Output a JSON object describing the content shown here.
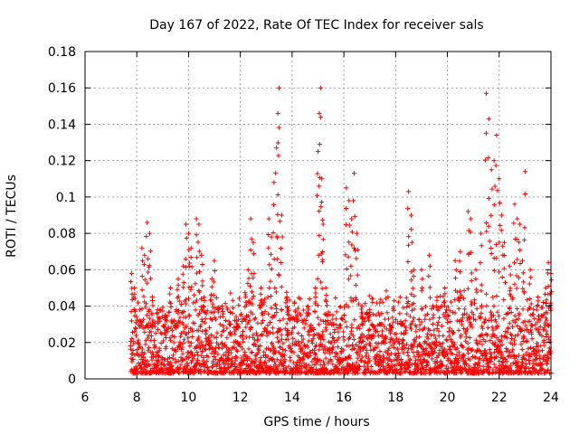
{
  "chart_data": {
    "type": "scatter",
    "title": "Day 167 of 2022, Rate Of TEC Index for receiver sals",
    "xlabel": "GPS time / hours",
    "ylabel": "ROTI / TECUs",
    "xlim": [
      6,
      24
    ],
    "ylim": [
      0,
      0.18
    ],
    "x_ticks": [
      6,
      8,
      10,
      12,
      14,
      16,
      18,
      20,
      22,
      24
    ],
    "x_tick_labels": [
      "6",
      "8",
      "10",
      "12",
      "14",
      "16",
      "18",
      "20",
      "22",
      "24"
    ],
    "y_ticks": [
      0,
      0.02,
      0.04,
      0.06,
      0.08,
      0.1,
      0.12,
      0.14,
      0.16,
      0.18
    ],
    "y_tick_labels": [
      "0",
      "0.02",
      "0.04",
      "0.06",
      "0.08",
      "0.1",
      "0.12",
      "0.14",
      "0.16",
      "0.18"
    ],
    "grid": true,
    "marker": "plus",
    "marker_color": "#ff0000",
    "series": [
      {
        "name": "ROTI",
        "points": [
          [
            7.8,
            0.058
          ],
          [
            7.9,
            0.05
          ],
          [
            8.2,
            0.072
          ],
          [
            8.3,
            0.068
          ],
          [
            8.4,
            0.086
          ],
          [
            8.5,
            0.08
          ],
          [
            8.6,
            0.045
          ],
          [
            8.8,
            0.038
          ],
          [
            9.1,
            0.035
          ],
          [
            9.3,
            0.05
          ],
          [
            9.6,
            0.055
          ],
          [
            9.8,
            0.062
          ],
          [
            9.9,
            0.085
          ],
          [
            10.0,
            0.08
          ],
          [
            10.1,
            0.072
          ],
          [
            10.3,
            0.088
          ],
          [
            10.4,
            0.085
          ],
          [
            10.5,
            0.068
          ],
          [
            10.6,
            0.045
          ],
          [
            10.9,
            0.055
          ],
          [
            11.0,
            0.065
          ],
          [
            11.3,
            0.04
          ],
          [
            11.6,
            0.03
          ],
          [
            11.9,
            0.028
          ],
          [
            12.2,
            0.045
          ],
          [
            12.3,
            0.06
          ],
          [
            12.4,
            0.088
          ],
          [
            12.5,
            0.075
          ],
          [
            12.8,
            0.05
          ],
          [
            13.1,
            0.088
          ],
          [
            13.2,
            0.078
          ],
          [
            13.3,
            0.108
          ],
          [
            13.4,
            0.127
          ],
          [
            13.45,
            0.146
          ],
          [
            13.5,
            0.16
          ],
          [
            13.6,
            0.09
          ],
          [
            13.8,
            0.045
          ],
          [
            14.2,
            0.035
          ],
          [
            14.6,
            0.04
          ],
          [
            14.9,
            0.05
          ],
          [
            15.0,
            0.125
          ],
          [
            15.05,
            0.146
          ],
          [
            15.1,
            0.16
          ],
          [
            15.15,
            0.11
          ],
          [
            15.2,
            0.085
          ],
          [
            15.3,
            0.05
          ],
          [
            15.6,
            0.03
          ],
          [
            16.1,
            0.105
          ],
          [
            16.2,
            0.098
          ],
          [
            16.3,
            0.088
          ],
          [
            16.4,
            0.113
          ],
          [
            16.5,
            0.08
          ],
          [
            16.7,
            0.04
          ],
          [
            17.0,
            0.038
          ],
          [
            17.4,
            0.03
          ],
          [
            17.8,
            0.025
          ],
          [
            18.2,
            0.03
          ],
          [
            18.5,
            0.103
          ],
          [
            18.6,
            0.09
          ],
          [
            18.7,
            0.06
          ],
          [
            19.0,
            0.06
          ],
          [
            19.3,
            0.068
          ],
          [
            19.6,
            0.045
          ],
          [
            19.9,
            0.05
          ],
          [
            20.3,
            0.065
          ],
          [
            20.5,
            0.07
          ],
          [
            20.8,
            0.092
          ],
          [
            20.9,
            0.088
          ],
          [
            21.1,
            0.06
          ],
          [
            21.3,
            0.08
          ],
          [
            21.5,
            0.157
          ],
          [
            21.6,
            0.143
          ],
          [
            21.7,
            0.115
          ],
          [
            21.8,
            0.12
          ],
          [
            21.9,
            0.134
          ],
          [
            22.0,
            0.11
          ],
          [
            22.1,
            0.09
          ],
          [
            22.2,
            0.075
          ],
          [
            22.4,
            0.062
          ],
          [
            22.6,
            0.096
          ],
          [
            22.7,
            0.088
          ],
          [
            22.8,
            0.085
          ],
          [
            22.9,
            0.065
          ],
          [
            23.0,
            0.114
          ],
          [
            23.2,
            0.06
          ],
          [
            23.5,
            0.045
          ],
          [
            23.8,
            0.05
          ],
          [
            23.9,
            0.064
          ],
          [
            24.0,
            0.058
          ]
        ],
        "baseline_band": {
          "start": 7.75,
          "end": 24.0,
          "min": 0.003,
          "typical_max": 0.03
        }
      }
    ]
  }
}
